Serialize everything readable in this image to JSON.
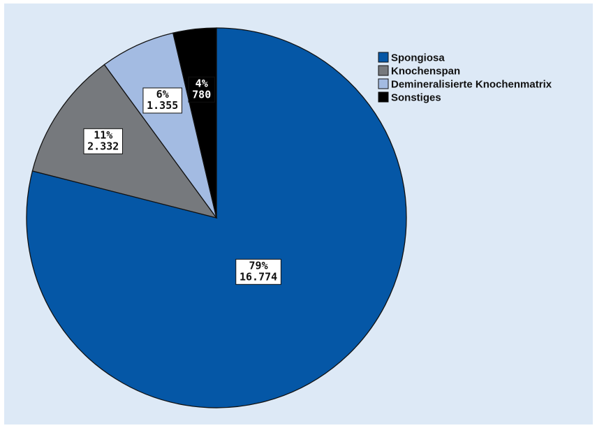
{
  "chart_data": {
    "type": "pie",
    "start": "top",
    "direction": "clockwise",
    "slices": [
      {
        "name": "Spongiosa",
        "percent_label": "79%",
        "value_label": "16.774",
        "value": 16774,
        "color": "#0557a6"
      },
      {
        "name": "Knochenspan",
        "percent_label": "11%",
        "value_label": "2.332",
        "value": 2332,
        "color": "#76797d"
      },
      {
        "name": "Demineralisierte Knochenmatrix",
        "percent_label": "6%",
        "value_label": "1.355",
        "value": 1355,
        "color": "#a3bbe2"
      },
      {
        "name": "Sonstiges",
        "percent_label": "4%",
        "value_label": "780",
        "value": 780,
        "color": "#000000"
      }
    ],
    "legend_position": "top-right",
    "background": "#dde9f6"
  }
}
